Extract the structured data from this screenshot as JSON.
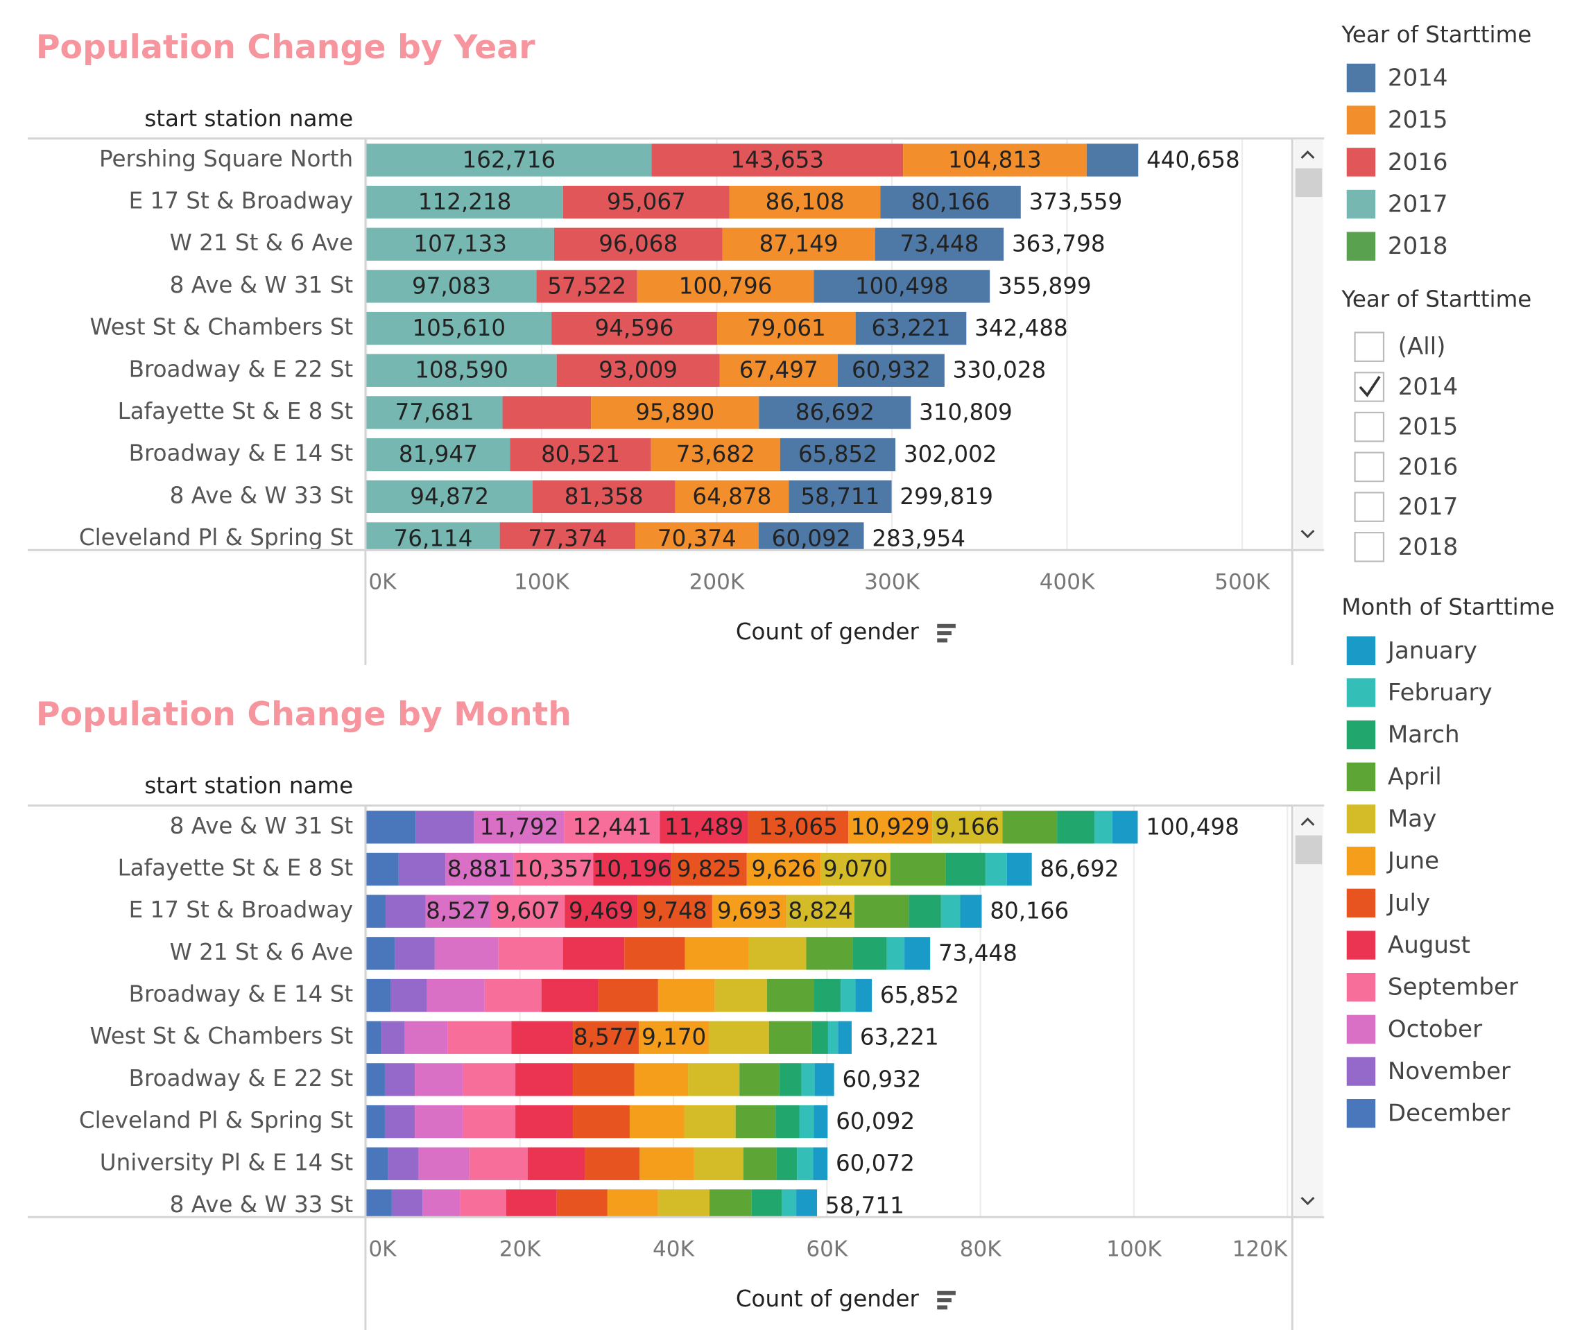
{
  "chart_data": [
    {
      "type": "bar",
      "orientation": "horizontal",
      "stacked": true,
      "stack_order": "reverse",
      "title": "Population Change by Year",
      "y_label": "start station name",
      "x_label": "Count of gender",
      "legend_title": "Year of Starttime",
      "categories": [
        "Pershing Square North",
        "E 17 St & Broadway",
        "W 21 St & 6 Ave",
        "8 Ave & W 31 St",
        "West St & Chambers St",
        "Broadway & E 22 St",
        "Lafayette St & E 8 St",
        "Broadway & E 14 St",
        "8 Ave & W 33 St",
        "Cleveland Pl & Spring St"
      ],
      "series": [
        {
          "name": "2014",
          "color": "#4e79a7",
          "values": [
            29476,
            80166,
            73448,
            100498,
            63221,
            60932,
            86692,
            65852,
            58711,
            60092
          ],
          "value_labels": [
            null,
            "80,166",
            "73,448",
            "100,498",
            "63,221",
            "60,932",
            "86,692",
            "65,852",
            "58,711",
            "60,092"
          ]
        },
        {
          "name": "2015",
          "color": "#f28e2b",
          "values": [
            104813,
            86108,
            87149,
            100796,
            79061,
            67497,
            95890,
            73682,
            64878,
            70374
          ],
          "value_labels": [
            "104,813",
            "86,108",
            "87,149",
            "100,796",
            "79,061",
            "67,497",
            "95,890",
            "73,682",
            "64,878",
            "70,374"
          ]
        },
        {
          "name": "2016",
          "color": "#e15759",
          "values": [
            143653,
            95067,
            96068,
            57522,
            94596,
            93009,
            50546,
            80521,
            81358,
            77374
          ],
          "value_labels": [
            "143,653",
            "95,067",
            "96,068",
            "57,522",
            "94,596",
            "93,009",
            null,
            "80,521",
            "81,358",
            "77,374"
          ]
        },
        {
          "name": "2017",
          "color": "#76b7b2",
          "values": [
            162716,
            112218,
            107133,
            97083,
            105610,
            108590,
            77681,
            81947,
            94872,
            76114
          ],
          "value_labels": [
            "162,716",
            "112,218",
            "107,133",
            "97,083",
            "105,610",
            "108,590",
            "77,681",
            "81,947",
            "94,872",
            "76,114"
          ]
        },
        {
          "name": "2018",
          "color": "#59a14f",
          "values": [
            null,
            null,
            null,
            null,
            null,
            null,
            null,
            null,
            null,
            null
          ]
        }
      ],
      "totals": [
        440658,
        373559,
        363798,
        355899,
        342488,
        330028,
        310809,
        302002,
        299819,
        283954
      ],
      "total_labels": [
        "440,658",
        "373,559",
        "363,798",
        "355,899",
        "342,488",
        "330,028",
        "310,809",
        "302,002",
        "299,819",
        "283,954"
      ],
      "xlim": [
        0,
        528000
      ],
      "xticks": [
        {
          "value": 0,
          "label": "0K"
        },
        {
          "value": 100000,
          "label": "100K"
        },
        {
          "value": 200000,
          "label": "200K"
        },
        {
          "value": 300000,
          "label": "300K"
        },
        {
          "value": 400000,
          "label": "400K"
        },
        {
          "value": 500000,
          "label": "500K"
        }
      ],
      "grid": true
    },
    {
      "type": "bar",
      "orientation": "horizontal",
      "stacked": true,
      "stack_order": "reverse",
      "title": "Population Change by Month",
      "y_label": "start station name",
      "x_label": "Count of gender",
      "legend_title": "Month of Starttime",
      "categories": [
        "8 Ave & W 31 St",
        "Lafayette St & E 8 St",
        "E 17 St & Broadway",
        "W 21 St & 6 Ave",
        "Broadway & E 14 St",
        "West St & Chambers St",
        "Broadway & E 22 St",
        "Cleveland Pl & Spring St",
        "University Pl & E 14 St",
        "8 Ave & W 33 St"
      ],
      "series": [
        {
          "name": "January",
          "color": "#1a9bc7",
          "values": [
            3316,
            3237,
            2798,
            3348,
            2152,
            1774,
            2532,
            1792,
            1872,
            2711
          ]
        },
        {
          "name": "February",
          "color": "#33bfb8",
          "values": [
            2300,
            2800,
            2500,
            2300,
            1900,
            1300,
            1700,
            1900,
            2100,
            1900
          ]
        },
        {
          "name": "March",
          "color": "#21a66e",
          "values": [
            4900,
            5200,
            4200,
            4400,
            3500,
            2100,
            2900,
            3100,
            2700,
            3900
          ]
        },
        {
          "name": "April",
          "color": "#5da636",
          "values": [
            7100,
            7200,
            7100,
            6100,
            6100,
            5600,
            5200,
            5200,
            4300,
            5500
          ]
        },
        {
          "name": "May",
          "color": "#d4bc29",
          "values": [
            9166,
            9070,
            8824,
            7500,
            6800,
            7800,
            6700,
            6700,
            6400,
            6700
          ],
          "value_labels": [
            "9,166",
            "9,070",
            "8,824",
            null,
            null,
            null,
            null,
            null,
            null,
            null
          ]
        },
        {
          "name": "June",
          "color": "#f59e1b",
          "values": [
            10929,
            9626,
            9693,
            8300,
            7400,
            9170,
            7000,
            7100,
            7100,
            6600
          ],
          "value_labels": [
            "10,929",
            "9,626",
            "9,693",
            null,
            null,
            "9,170",
            null,
            null,
            null,
            null
          ]
        },
        {
          "name": "July",
          "color": "#e8541f",
          "values": [
            13065,
            9825,
            9748,
            7900,
            7800,
            8577,
            8000,
            7400,
            7100,
            6600
          ],
          "value_labels": [
            "13,065",
            "9,825",
            "9,748",
            null,
            null,
            "8,577",
            null,
            null,
            null,
            null
          ]
        },
        {
          "name": "August",
          "color": "#eb3451",
          "values": [
            11489,
            10196,
            9469,
            8000,
            7400,
            8000,
            7500,
            7500,
            7500,
            6600
          ],
          "value_labels": [
            "11,489",
            "10,196",
            "9,469",
            null,
            null,
            null,
            null,
            null,
            null,
            null
          ]
        },
        {
          "name": "September",
          "color": "#f76e9a",
          "values": [
            12441,
            10357,
            9607,
            8400,
            7400,
            8300,
            6800,
            6800,
            7600,
            6000
          ],
          "value_labels": [
            "12,441",
            "10,357",
            "9,607",
            null,
            null,
            null,
            null,
            null,
            null,
            null
          ]
        },
        {
          "name": "October",
          "color": "#da6fc6",
          "values": [
            11792,
            8881,
            8527,
            8300,
            7500,
            5600,
            6300,
            6300,
            6600,
            4900
          ],
          "value_labels": [
            "11,792",
            "8,881",
            "8,527",
            null,
            null,
            null,
            null,
            null,
            null,
            null
          ]
        },
        {
          "name": "November",
          "color": "#9569c9",
          "values": [
            7600,
            6100,
            5200,
            5200,
            4700,
            3100,
            3900,
            3900,
            4000,
            4000
          ]
        },
        {
          "name": "December",
          "color": "#4a76bb",
          "values": [
            6400,
            4200,
            2500,
            3700,
            3200,
            1900,
            2400,
            2400,
            2800,
            3300
          ]
        }
      ],
      "totals": [
        100498,
        86692,
        80166,
        73448,
        65852,
        63221,
        60932,
        60092,
        60072,
        58711
      ],
      "total_labels": [
        "100,498",
        "86,692",
        "80,166",
        "73,448",
        "65,852",
        "63,221",
        "60,932",
        "60,092",
        "60,072",
        "58,711"
      ],
      "xlim": [
        0,
        120500
      ],
      "xticks": [
        {
          "value": 0,
          "label": "0K"
        },
        {
          "value": 20000,
          "label": "20K"
        },
        {
          "value": 40000,
          "label": "40K"
        },
        {
          "value": 60000,
          "label": "60K"
        },
        {
          "value": 80000,
          "label": "80K"
        },
        {
          "value": 100000,
          "label": "100K"
        },
        {
          "value": 120000,
          "label": "120K"
        }
      ],
      "grid": true
    }
  ],
  "filter": {
    "title": "Year of Starttime",
    "options": [
      {
        "label": "(All)",
        "checked": false
      },
      {
        "label": "2014",
        "checked": true
      },
      {
        "label": "2015",
        "checked": false
      },
      {
        "label": "2016",
        "checked": false
      },
      {
        "label": "2017",
        "checked": false
      },
      {
        "label": "2018",
        "checked": false
      }
    ]
  }
}
